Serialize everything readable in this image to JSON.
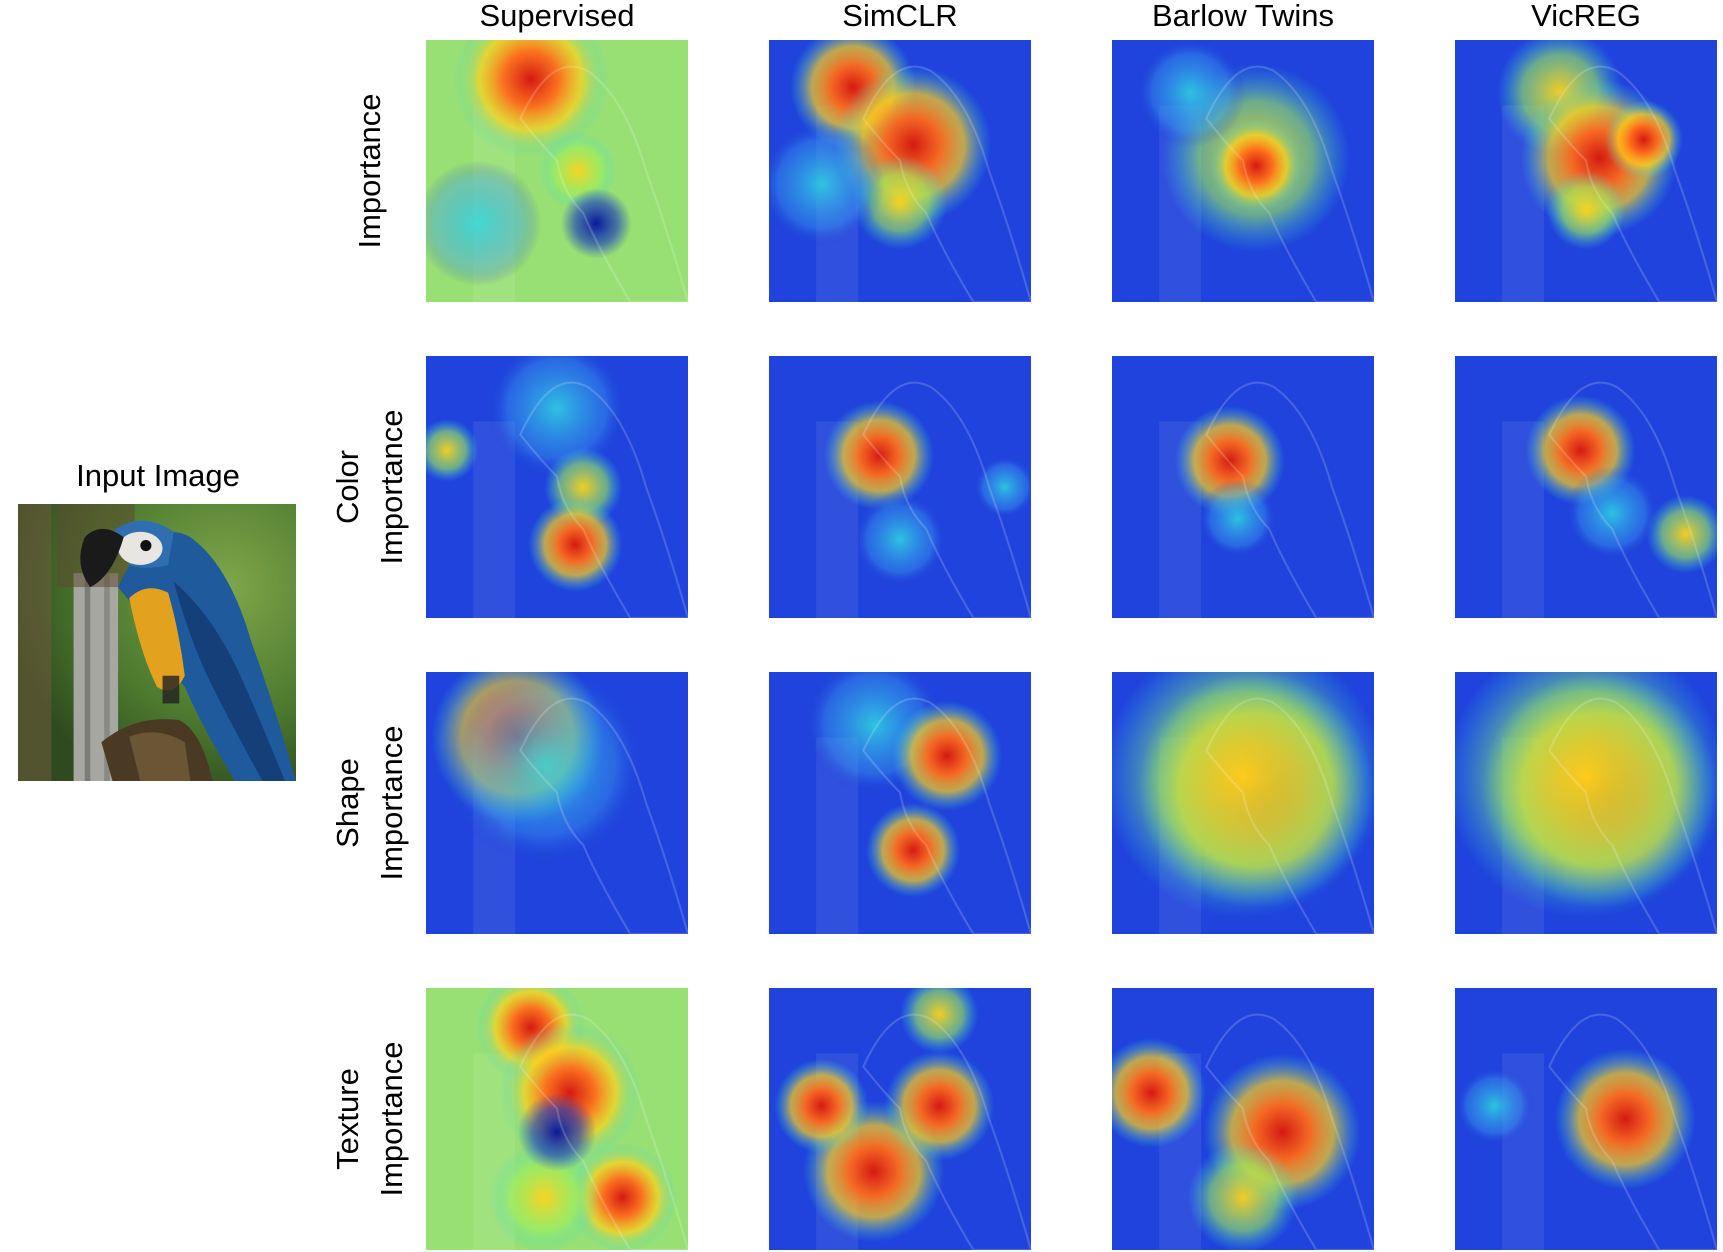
{
  "input": {
    "title": "Input Image",
    "image_icon": "macaw-photo"
  },
  "columns": [
    "Supervised",
    "SimCLR",
    "Barlow Twins",
    "VicREG"
  ],
  "rows": [
    {
      "line1": "Importance",
      "line2": ""
    },
    {
      "line1": "Color",
      "line2": "Importance"
    },
    {
      "line1": "Shape",
      "line2": "Importance"
    },
    {
      "line1": "Texture",
      "line2": "Importance"
    }
  ],
  "colormap": {
    "low": "#1a2fd6",
    "mid": "#2fd9e0",
    "high": "#ffd21a",
    "peak": "#d41a12"
  }
}
